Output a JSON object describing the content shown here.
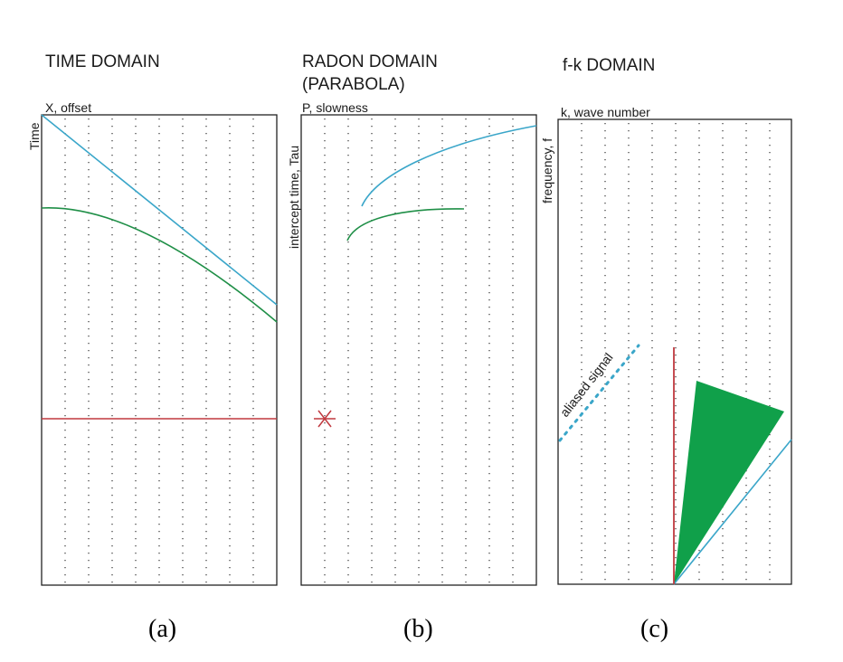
{
  "colors": {
    "cyan": "#3aa6c9",
    "green": "#1f8f47",
    "green_fill": "#10a04a",
    "red": "#c0393f",
    "frame": "#222222",
    "grid_dots": "#333333"
  },
  "panels": [
    {
      "id": "a",
      "title_lines": [
        "TIME DOMAIN"
      ],
      "x_axis_label": "X, offset",
      "y_axis_label": "Time",
      "caption": "(a)"
    },
    {
      "id": "b",
      "title_lines": [
        "RADON DOMAIN",
        "(PARABOLA)"
      ],
      "x_axis_label": "P, slowness",
      "y_axis_label": "intercept time, Tau",
      "caption": "(b)"
    },
    {
      "id": "c",
      "title_lines": [
        "f-k DOMAIN"
      ],
      "x_axis_label": "k, wave number",
      "y_axis_label": "frequency, f",
      "caption": "(c)",
      "annotation": "aliased signal"
    }
  ]
}
